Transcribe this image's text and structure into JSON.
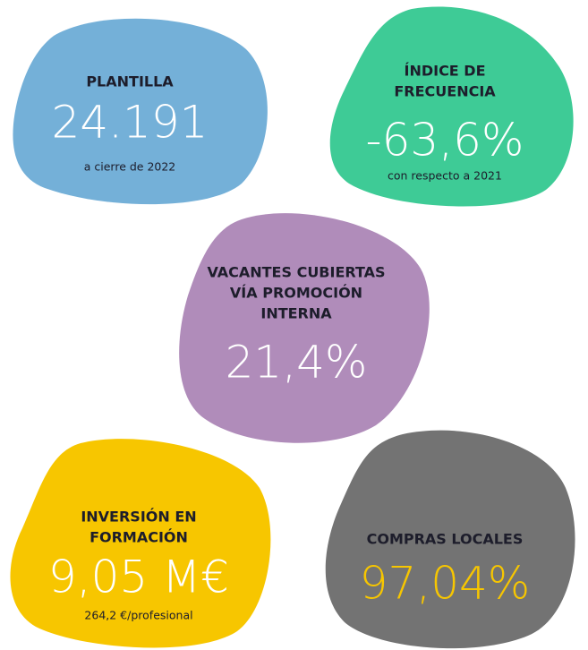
{
  "cards": [
    {
      "label": [
        "PLANTILLA"
      ],
      "value": "24.191",
      "note": "a cierre de 2022",
      "color": "#74b0d8",
      "value_color": "#ffffff"
    },
    {
      "label": [
        "ÍNDICE DE",
        "FRECUENCIA"
      ],
      "value": "-63,6%",
      "note": "con respecto a 2021",
      "color": "#3ecb96",
      "value_color": "#ffffff"
    },
    {
      "label": [
        "VACANTES CUBIERTAS",
        "VÍA PROMOCIÓN",
        "INTERNA"
      ],
      "value": "21,4%",
      "color": "#b08cba",
      "value_color": "#ffffff"
    },
    {
      "label": [
        "INVERSIÓN EN",
        "FORMACIÓN"
      ],
      "value": "9,05 M€",
      "note": "264,2 €/profesional",
      "color": "#f7c600",
      "value_color": "#ffffff"
    },
    {
      "label": [
        "COMPRAS LOCALES"
      ],
      "value": "97,04%",
      "color": "#737373",
      "value_color": "#f7c600"
    }
  ]
}
